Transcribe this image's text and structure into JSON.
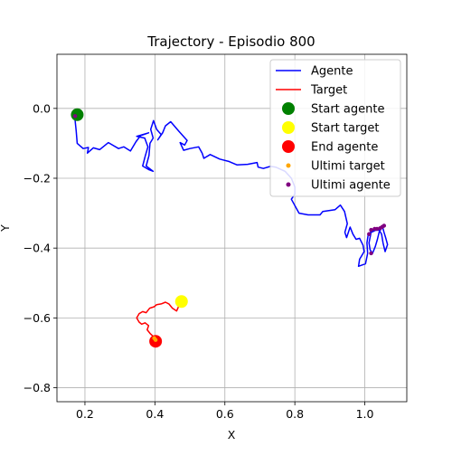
{
  "chart_data": {
    "type": "line",
    "title": "Trajectory - Episodio 800",
    "xlabel": "X",
    "ylabel": "Y",
    "xlim": [
      0.12,
      1.12
    ],
    "ylim": [
      -0.84,
      0.155
    ],
    "grid": true,
    "legend_position": "top-right",
    "x_ticks": [
      0.2,
      0.4,
      0.6,
      0.8,
      1.0
    ],
    "x_tick_labels": [
      "0.2",
      "0.4",
      "0.6",
      "0.8",
      "1.0"
    ],
    "y_ticks": [
      0.0,
      -0.2,
      -0.4,
      -0.6,
      -0.8
    ],
    "y_tick_labels": [
      "0.0",
      "−0.2",
      "−0.4",
      "−0.6",
      "−0.8"
    ],
    "colors": {
      "agent": "#0000ff",
      "target": "#ff0000",
      "start_agent": "#008000",
      "start_target": "#ffff00",
      "end_agent": "#ff0000",
      "recent_target": "#ffa500",
      "recent_agent": "#800080"
    },
    "legend": [
      {
        "label": "Agente",
        "kind": "line",
        "color": "#0000ff"
      },
      {
        "label": "Target",
        "kind": "line",
        "color": "#ff0000"
      },
      {
        "label": "Start agente",
        "kind": "big-dot",
        "color": "#008000"
      },
      {
        "label": "Start target",
        "kind": "big-dot",
        "color": "#ffff00"
      },
      {
        "label": "End agente",
        "kind": "big-dot",
        "color": "#ff0000"
      },
      {
        "label": "Ultimi target",
        "kind": "small-dot",
        "color": "#ffa500"
      },
      {
        "label": "Ultimi agente",
        "kind": "small-dot",
        "color": "#800080"
      }
    ],
    "series": [
      {
        "name": "Agente",
        "points": [
          [
            0.176,
            -0.022
          ],
          [
            0.172,
            -0.035
          ],
          [
            0.175,
            -0.065
          ],
          [
            0.178,
            -0.1
          ],
          [
            0.195,
            -0.115
          ],
          [
            0.21,
            -0.112
          ],
          [
            0.207,
            -0.128
          ],
          [
            0.224,
            -0.113
          ],
          [
            0.242,
            -0.118
          ],
          [
            0.267,
            -0.098
          ],
          [
            0.296,
            -0.115
          ],
          [
            0.311,
            -0.11
          ],
          [
            0.33,
            -0.122
          ],
          [
            0.346,
            -0.095
          ],
          [
            0.359,
            -0.078
          ],
          [
            0.382,
            -0.07
          ],
          [
            0.348,
            -0.08
          ],
          [
            0.371,
            -0.085
          ],
          [
            0.38,
            -0.11
          ],
          [
            0.372,
            -0.138
          ],
          [
            0.365,
            -0.165
          ],
          [
            0.382,
            -0.175
          ],
          [
            0.395,
            -0.18
          ],
          [
            0.375,
            -0.165
          ],
          [
            0.383,
            -0.135
          ],
          [
            0.386,
            -0.1
          ],
          [
            0.395,
            -0.085
          ],
          [
            0.388,
            -0.06
          ],
          [
            0.396,
            -0.035
          ],
          [
            0.405,
            -0.06
          ],
          [
            0.418,
            -0.075
          ],
          [
            0.408,
            -0.09
          ],
          [
            0.422,
            -0.07
          ],
          [
            0.43,
            -0.05
          ],
          [
            0.445,
            -0.038
          ],
          [
            0.468,
            -0.065
          ],
          [
            0.492,
            -0.092
          ],
          [
            0.485,
            -0.105
          ],
          [
            0.472,
            -0.098
          ],
          [
            0.482,
            -0.12
          ],
          [
            0.5,
            -0.115
          ],
          [
            0.525,
            -0.11
          ],
          [
            0.535,
            -0.128
          ],
          [
            0.54,
            -0.143
          ],
          [
            0.558,
            -0.132
          ],
          [
            0.585,
            -0.145
          ],
          [
            0.612,
            -0.152
          ],
          [
            0.635,
            -0.162
          ],
          [
            0.665,
            -0.16
          ],
          [
            0.692,
            -0.155
          ],
          [
            0.695,
            -0.168
          ],
          [
            0.71,
            -0.172
          ],
          [
            0.73,
            -0.166
          ],
          [
            0.745,
            -0.168
          ],
          [
            0.772,
            -0.18
          ],
          [
            0.79,
            -0.2
          ],
          [
            0.8,
            -0.225
          ],
          [
            0.8,
            -0.245
          ],
          [
            0.79,
            -0.26
          ],
          [
            0.812,
            -0.3
          ],
          [
            0.838,
            -0.305
          ],
          [
            0.872,
            -0.305
          ],
          [
            0.88,
            -0.295
          ],
          [
            0.915,
            -0.29
          ],
          [
            0.93,
            -0.277
          ],
          [
            0.942,
            -0.295
          ],
          [
            0.95,
            -0.33
          ],
          [
            0.943,
            -0.355
          ],
          [
            0.948,
            -0.37
          ],
          [
            0.958,
            -0.34
          ],
          [
            0.966,
            -0.36
          ],
          [
            0.975,
            -0.375
          ],
          [
            0.985,
            -0.372
          ],
          [
            0.995,
            -0.392
          ],
          [
            0.998,
            -0.41
          ],
          [
            0.985,
            -0.432
          ],
          [
            0.982,
            -0.452
          ],
          [
            1.002,
            -0.445
          ],
          [
            1.008,
            -0.415
          ],
          [
            1.006,
            -0.385
          ],
          [
            1.01,
            -0.36
          ],
          [
            1.022,
            -0.35
          ],
          [
            1.045,
            -0.348
          ],
          [
            1.05,
            -0.336
          ],
          [
            1.055,
            -0.355
          ],
          [
            1.06,
            -0.372
          ],
          [
            1.065,
            -0.39
          ],
          [
            1.058,
            -0.41
          ],
          [
            1.052,
            -0.385
          ],
          [
            1.048,
            -0.36
          ],
          [
            1.042,
            -0.35
          ],
          [
            1.036,
            -0.375
          ],
          [
            1.03,
            -0.395
          ],
          [
            1.022,
            -0.415
          ],
          [
            1.015,
            -0.405
          ],
          [
            1.012,
            -0.385
          ],
          [
            1.018,
            -0.355
          ],
          [
            1.034,
            -0.348
          ],
          [
            1.052,
            -0.338
          ]
        ]
      },
      {
        "name": "Target",
        "points": [
          [
            0.474,
            -0.553
          ],
          [
            0.462,
            -0.58
          ],
          [
            0.45,
            -0.572
          ],
          [
            0.44,
            -0.56
          ],
          [
            0.43,
            -0.555
          ],
          [
            0.418,
            -0.56
          ],
          [
            0.405,
            -0.562
          ],
          [
            0.398,
            -0.568
          ],
          [
            0.385,
            -0.572
          ],
          [
            0.375,
            -0.585
          ],
          [
            0.365,
            -0.582
          ],
          [
            0.355,
            -0.588
          ],
          [
            0.348,
            -0.6
          ],
          [
            0.355,
            -0.612
          ],
          [
            0.362,
            -0.618
          ],
          [
            0.372,
            -0.614
          ],
          [
            0.382,
            -0.622
          ],
          [
            0.378,
            -0.634
          ],
          [
            0.386,
            -0.644
          ],
          [
            0.394,
            -0.652
          ],
          [
            0.398,
            -0.662
          ],
          [
            0.404,
            -0.668
          ]
        ]
      }
    ],
    "start_agente": [
      0.178,
      -0.018
    ],
    "start_target": [
      0.476,
      -0.553
    ],
    "end_agente": [
      0.402,
      -0.667
    ],
    "ultimi_target": [
      [
        0.398,
        -0.658
      ],
      [
        0.402,
        -0.663
      ]
    ],
    "ultimi_agente": [
      [
        0.172,
        -0.022
      ],
      [
        1.018,
        -0.348
      ],
      [
        1.028,
        -0.345
      ],
      [
        1.035,
        -0.345
      ],
      [
        1.044,
        -0.343
      ],
      [
        1.05,
        -0.339
      ],
      [
        1.055,
        -0.336
      ],
      [
        1.012,
        -0.36
      ],
      [
        1.018,
        -0.415
      ]
    ]
  }
}
